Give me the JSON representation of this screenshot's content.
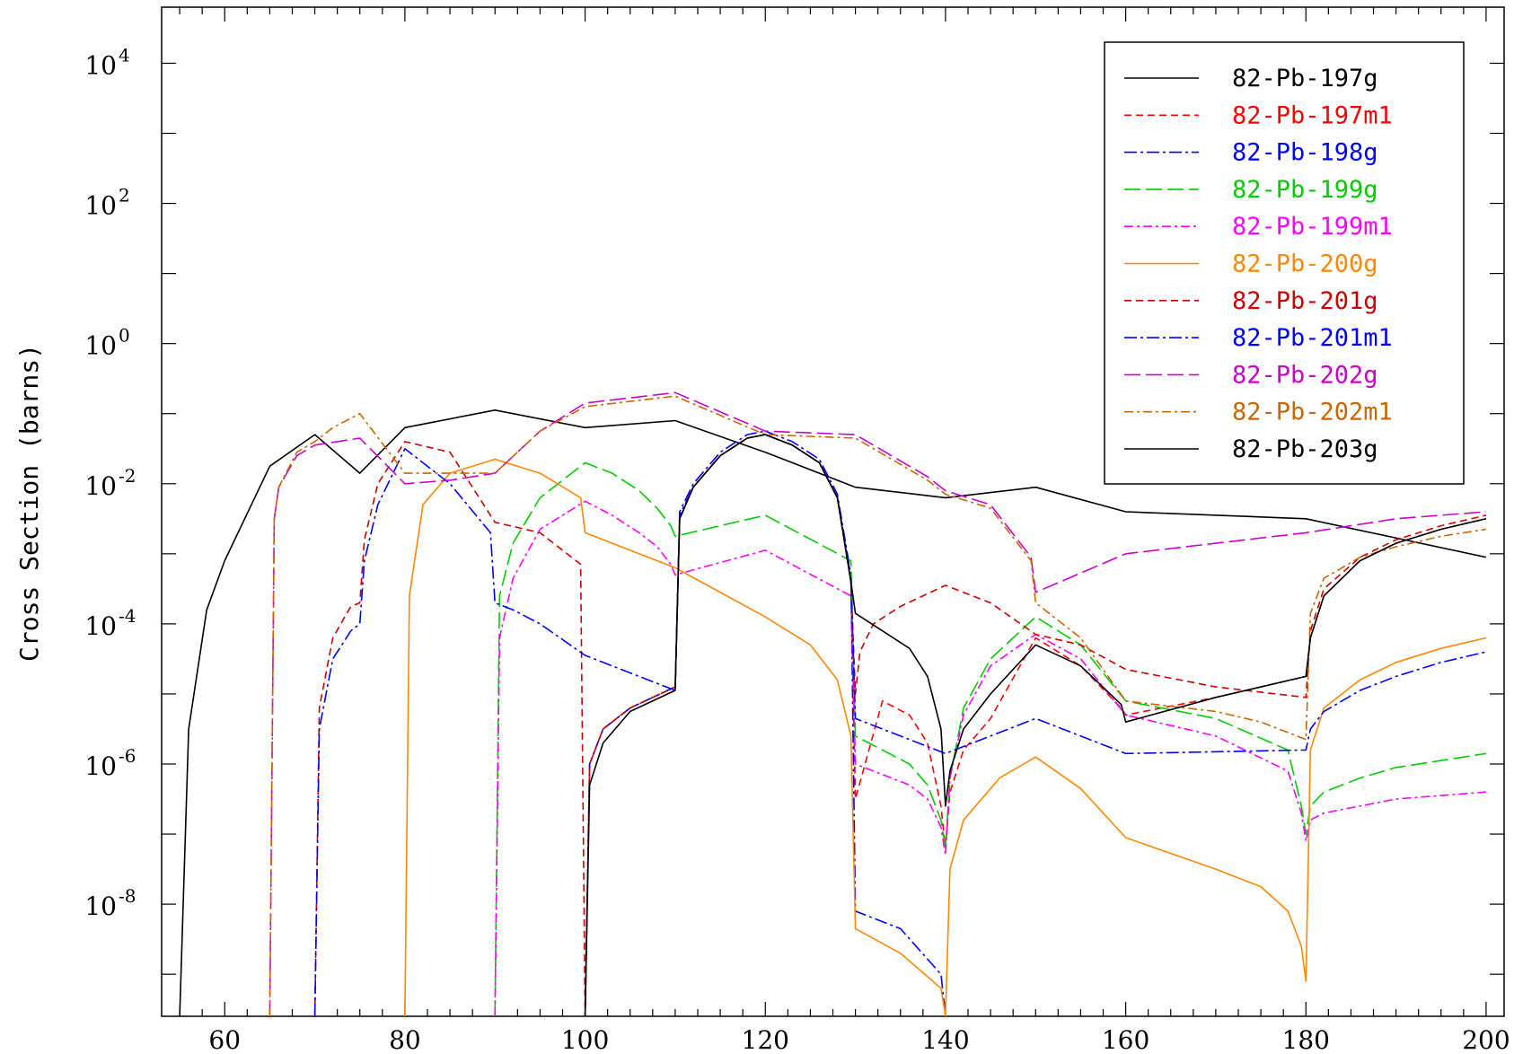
{
  "chart_data": {
    "type": "line",
    "title": "",
    "xlabel": "",
    "ylabel": "Cross Section (barns)",
    "xlim": [
      53,
      202
    ],
    "ylim_log10": [
      -9.6,
      4.8
    ],
    "y_scale": "log",
    "x_ticks": [
      60,
      80,
      100,
      120,
      140,
      160,
      180,
      200
    ],
    "y_major_ticks": [
      {
        "base": "10",
        "exp": "4",
        "value": 10000
      },
      {
        "base": "10",
        "exp": "2",
        "value": 100
      },
      {
        "base": "10",
        "exp": "0",
        "value": 1
      },
      {
        "base": "10",
        "exp": "-2",
        "value": 0.01
      },
      {
        "base": "10",
        "exp": "-4",
        "value": 0.0001
      },
      {
        "base": "10",
        "exp": "-6",
        "value": 1e-06
      },
      {
        "base": "10",
        "exp": "-8",
        "value": 1e-08
      }
    ],
    "legend_position": "top-right",
    "series": [
      {
        "name": "82-Pb-197g",
        "color": "#000000",
        "dash": "solid",
        "x": [
          55,
          56,
          58,
          60,
          65,
          70,
          75,
          80,
          90,
          100,
          110,
          120,
          130,
          140,
          150,
          160,
          180,
          200
        ],
        "log10y": [
          -10,
          -5.5,
          -3.8,
          -3.1,
          -1.75,
          -1.3,
          -1.85,
          -1.2,
          -0.95,
          -1.2,
          -1.1,
          -1.55,
          -2.05,
          -2.2,
          -2.05,
          -2.4,
          -2.5,
          -3.05
        ]
      },
      {
        "name": "82-Pb-197m1",
        "color": "#ff0000",
        "dash": "8,5",
        "x": [
          100,
          100.5,
          102,
          105,
          110,
          110.5,
          112,
          115,
          118,
          120,
          123,
          126,
          128,
          129.5,
          130,
          133,
          136,
          138,
          139.5,
          140,
          140.5,
          142,
          145,
          150,
          155,
          159.5,
          160,
          170,
          180,
          180.5,
          182,
          186,
          190,
          195,
          200
        ],
        "log10y": [
          -10,
          -6,
          -5.5,
          -5.2,
          -4.9,
          -2.5,
          -2.05,
          -1.6,
          -1.35,
          -1.3,
          -1.45,
          -1.7,
          -2.2,
          -3.4,
          -6.5,
          -5.1,
          -5.3,
          -5.7,
          -6.6,
          -7.2,
          -6.4,
          -5.8,
          -5.35,
          -4.2,
          -4.6,
          -5.2,
          -5.3,
          -5.05,
          -4.75,
          -4.2,
          -3.6,
          -3.1,
          -2.85,
          -2.65,
          -2.5
        ]
      },
      {
        "name": "82-Pb-198g",
        "color": "#0000ff",
        "dash": "14,4,3,4",
        "x": [
          100,
          100.5,
          102,
          105,
          110,
          110.5,
          112,
          115,
          118,
          120,
          123,
          126,
          128,
          129.5,
          130,
          135,
          139.5,
          140
        ],
        "log10y": [
          -10,
          -6,
          -5.5,
          -5.2,
          -4.9,
          -2.4,
          -2.0,
          -1.55,
          -1.3,
          -1.25,
          -1.4,
          -1.65,
          -2.15,
          -3.3,
          -8.1,
          -8.35,
          -9.0,
          -10
        ]
      },
      {
        "name": "82-Pb-199g",
        "color": "#00cc00",
        "dash": "18,6",
        "x": [
          90,
          90.5,
          92,
          95,
          100,
          103,
          106,
          108,
          109.5,
          110,
          120,
          129.5,
          130,
          133,
          136,
          138,
          139.5,
          140,
          140.5,
          142,
          145,
          150,
          155,
          160,
          170,
          178,
          179.5,
          180,
          180.5,
          182,
          186,
          190,
          195,
          200
        ],
        "log10y": [
          -10,
          -3.6,
          -2.85,
          -2.2,
          -1.7,
          -1.85,
          -2.1,
          -2.35,
          -2.6,
          -2.75,
          -2.45,
          -3.1,
          -5.6,
          -5.8,
          -6.0,
          -6.3,
          -6.8,
          -7.2,
          -6.2,
          -5.2,
          -4.5,
          -3.9,
          -4.3,
          -5.1,
          -5.35,
          -5.8,
          -6.6,
          -7.0,
          -6.6,
          -6.4,
          -6.2,
          -6.05,
          -5.95,
          -5.85
        ]
      },
      {
        "name": "82-Pb-199m1",
        "color": "#ff00ff",
        "dash": "10,4,3,4",
        "x": [
          90,
          90.5,
          92,
          95,
          100,
          103,
          106,
          108,
          109.5,
          110,
          120,
          129.5,
          130,
          133,
          136,
          138,
          139.5,
          140,
          140.5,
          142,
          145,
          150,
          155,
          160,
          170,
          178,
          179.5,
          180,
          180.5,
          182,
          186,
          190,
          195,
          200
        ],
        "log10y": [
          -10,
          -4.2,
          -3.35,
          -2.65,
          -2.25,
          -2.45,
          -2.7,
          -2.9,
          -3.15,
          -3.3,
          -2.95,
          -3.6,
          -6.0,
          -6.15,
          -6.3,
          -6.5,
          -6.9,
          -7.3,
          -6.2,
          -5.3,
          -4.6,
          -4.15,
          -4.5,
          -5.3,
          -5.6,
          -6.1,
          -6.7,
          -7.1,
          -6.8,
          -6.7,
          -6.6,
          -6.5,
          -6.45,
          -6.4
        ]
      },
      {
        "name": "82-Pb-200g",
        "color": "#ff8800",
        "dash": "solid",
        "x": [
          80,
          80.5,
          82,
          85,
          90,
          95,
          99.5,
          100,
          110,
          120,
          125,
          128,
          129.5,
          130,
          135,
          139.5,
          140,
          140.5,
          142,
          146,
          150,
          155,
          160,
          170,
          175,
          178,
          179.5,
          180,
          180.5,
          182,
          186,
          190,
          195,
          200
        ],
        "log10y": [
          -10,
          -3.6,
          -2.3,
          -1.85,
          -1.65,
          -1.85,
          -2.2,
          -2.7,
          -3.2,
          -3.9,
          -4.3,
          -4.8,
          -5.6,
          -8.35,
          -8.7,
          -9.2,
          -9.7,
          -7.5,
          -6.8,
          -6.2,
          -5.9,
          -6.35,
          -7.05,
          -7.5,
          -7.75,
          -8.1,
          -8.6,
          -9.1,
          -5.8,
          -5.2,
          -4.8,
          -4.55,
          -4.35,
          -4.2
        ]
      },
      {
        "name": "82-Pb-201g",
        "color": "#cc0000",
        "dash": "8,5",
        "x": [
          70,
          70.5,
          72,
          74,
          75,
          75.5,
          77,
          80,
          85,
          90,
          95,
          99.5,
          100,
          100.5,
          102,
          105,
          110,
          110.5,
          112,
          115,
          118,
          120,
          123,
          126,
          128,
          129.5,
          130,
          130.5,
          132,
          135,
          140,
          145,
          150,
          155,
          160,
          170,
          180,
          180.5,
          182,
          186,
          190,
          195,
          200
        ],
        "log10y": [
          -10,
          -5.2,
          -4.2,
          -3.75,
          -3.7,
          -2.8,
          -2.0,
          -1.4,
          -1.55,
          -2.55,
          -2.7,
          -3.15,
          -10,
          -6,
          -5.5,
          -5.2,
          -4.9,
          -2.5,
          -2.05,
          -1.6,
          -1.35,
          -1.3,
          -1.45,
          -1.7,
          -2.2,
          -3.4,
          -5.0,
          -4.4,
          -4.0,
          -3.75,
          -3.45,
          -3.7,
          -4.15,
          -4.3,
          -4.65,
          -4.9,
          -5.05,
          -4.1,
          -3.5,
          -3.05,
          -2.8,
          -2.6,
          -2.45
        ]
      },
      {
        "name": "82-Pb-201m1",
        "color": "#0000ff",
        "dash": "14,4,3,4",
        "x": [
          70,
          70.5,
          72,
          74,
          75,
          75.5,
          77,
          80,
          85,
          89.5,
          90,
          92,
          95,
          100,
          110,
          110.5,
          112,
          115,
          118,
          120,
          123,
          126,
          128,
          129.5,
          130,
          140,
          150,
          160,
          180,
          180.5,
          182,
          186,
          190,
          195,
          200
        ],
        "log10y": [
          -10,
          -5.5,
          -4.5,
          -4.1,
          -4.0,
          -3.1,
          -2.3,
          -1.5,
          -2.0,
          -2.7,
          -3.7,
          -3.8,
          -4.0,
          -4.45,
          -4.95,
          -2.45,
          -2.05,
          -1.6,
          -1.35,
          -1.3,
          -1.45,
          -1.7,
          -2.2,
          -3.35,
          -5.35,
          -5.85,
          -5.35,
          -5.85,
          -5.8,
          -5.5,
          -5.25,
          -4.95,
          -4.75,
          -4.55,
          -4.4
        ]
      },
      {
        "name": "82-Pb-202g",
        "color": "#cc00cc",
        "dash": "18,6",
        "x": [
          65,
          65.5,
          66,
          68,
          70,
          75,
          80,
          85,
          90,
          95,
          100,
          110,
          120,
          130,
          138,
          140,
          145,
          149.5,
          150,
          160,
          170,
          180,
          190,
          200
        ],
        "log10y": [
          -10,
          -2.5,
          -2.05,
          -1.6,
          -1.45,
          -1.35,
          -2.0,
          -1.95,
          -1.85,
          -1.25,
          -0.85,
          -0.7,
          -1.25,
          -1.3,
          -1.9,
          -2.1,
          -2.3,
          -3.05,
          -3.55,
          -3.0,
          -2.85,
          -2.7,
          -2.5,
          -2.4
        ]
      },
      {
        "name": "82-Pb-202m1",
        "color": "#cc6600",
        "dash": "10,4,3,4",
        "x": [
          65,
          65.5,
          66,
          68,
          70,
          72,
          75,
          80,
          90,
          95,
          100,
          110,
          120,
          130,
          138,
          140,
          145,
          149.5,
          150,
          155,
          160,
          170,
          175,
          180,
          180.5,
          182,
          186,
          190,
          195,
          200
        ],
        "log10y": [
          -10,
          -2.5,
          -2.05,
          -1.55,
          -1.4,
          -1.2,
          -1.0,
          -1.85,
          -1.85,
          -1.25,
          -0.9,
          -0.75,
          -1.3,
          -1.35,
          -1.95,
          -2.15,
          -2.35,
          -3.1,
          -3.7,
          -4.2,
          -5.1,
          -5.25,
          -5.4,
          -5.65,
          -3.85,
          -3.35,
          -3.05,
          -2.9,
          -2.75,
          -2.65
        ]
      },
      {
        "name": "82-Pb-203g",
        "color": "#000000",
        "dash": "solid",
        "x": [
          100,
          100.5,
          102,
          105,
          110,
          110.5,
          112,
          115,
          118,
          120,
          123,
          126,
          128,
          129.5,
          130,
          133,
          136,
          138,
          139.5,
          140,
          140.5,
          142,
          145,
          150,
          155,
          159.5,
          160,
          170,
          180,
          180.5,
          182,
          186,
          190,
          195,
          200
        ],
        "log10y": [
          -10,
          -6.3,
          -5.7,
          -5.25,
          -4.95,
          -2.5,
          -2.05,
          -1.6,
          -1.35,
          -1.3,
          -1.45,
          -1.7,
          -2.2,
          -3.4,
          -3.85,
          -4.1,
          -4.35,
          -4.75,
          -5.5,
          -6.6,
          -6.1,
          -5.5,
          -5.0,
          -4.3,
          -4.6,
          -5.15,
          -5.4,
          -5.05,
          -4.75,
          -4.2,
          -3.6,
          -3.1,
          -2.85,
          -2.65,
          -2.5
        ]
      }
    ]
  }
}
